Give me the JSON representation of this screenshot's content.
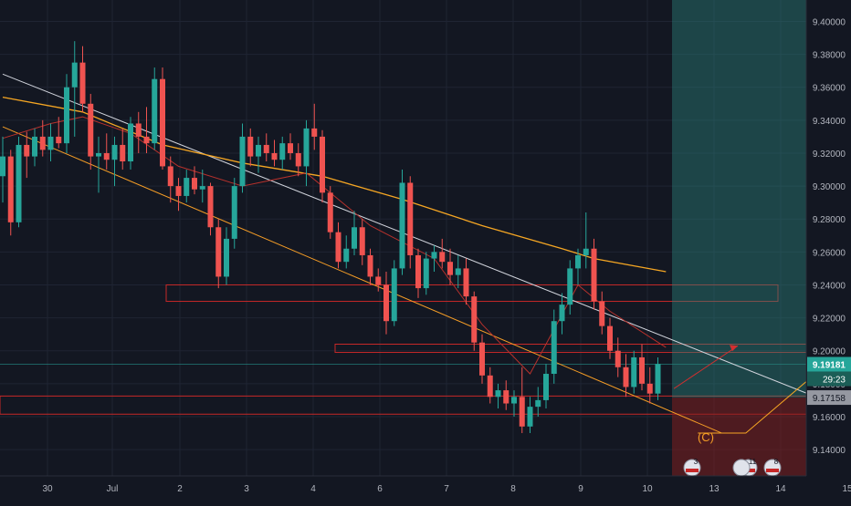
{
  "colors": {
    "background": "#131722",
    "up": "#26a69a",
    "down": "#ef5350",
    "grid": "#1f2433",
    "axis_text": "#b2b5be",
    "ma_long": "#f5a623",
    "ma_short": "#b7312c",
    "channel_white": "#d1d4dc",
    "channel_orange": "#f59d26",
    "zone_red": "#c62828",
    "target_teal": "#2a7f77",
    "stop_red": "#7f1f1f",
    "projection": "#f5a623",
    "arrow_red": "#d32f2f",
    "label_C": "#f59d26",
    "price_badge_teal": "#26a69a",
    "price_badge_gray": "#9598a1"
  },
  "chart_data": {
    "type": "candlestick",
    "instrument_unit": "price",
    "y_axis": {
      "ylim": [
        9.124,
        9.413
      ],
      "ticks": [
        "9.14000",
        "9.16000",
        "9.18000",
        "9.20000",
        "9.22000",
        "9.24000",
        "9.26000",
        "9.28000",
        "9.30000",
        "9.32000",
        "9.34000",
        "9.36000",
        "9.38000",
        "9.40000"
      ],
      "tick_values": [
        9.14,
        9.16,
        9.18,
        9.2,
        9.22,
        9.24,
        9.26,
        9.28,
        9.3,
        9.32,
        9.34,
        9.36,
        9.38,
        9.4
      ]
    },
    "x_axis": {
      "ticks": [
        "30",
        "Jul",
        "2",
        "3",
        "4",
        "6",
        "7",
        "8",
        "9",
        "10",
        "13",
        "14",
        "15"
      ],
      "tick_index": [
        0,
        1,
        2,
        3,
        4,
        5,
        6,
        7,
        8,
        9,
        10,
        11,
        12
      ]
    },
    "price_labels": {
      "current_price": "9.19181",
      "countdown": "29:23",
      "previous_close": "9.17158",
      "current_value": 9.19181,
      "previous_value": 9.17158
    },
    "annotations": {
      "wave_label": "(C)",
      "event_badges": [
        "3",
        "11",
        "8"
      ]
    },
    "zones": [
      {
        "name": "resistance-zone-upper",
        "y_top": 9.24,
        "y_bottom": 9.23
      },
      {
        "name": "resistance-zone-middle",
        "y_top": 9.204,
        "y_bottom": 9.199
      },
      {
        "name": "support-zone-lower",
        "y_top": 9.1725,
        "y_bottom": 9.1615
      }
    ],
    "candles": [
      [
        9.306,
        9.33,
        9.29,
        9.318
      ],
      [
        9.318,
        9.322,
        9.27,
        9.278
      ],
      [
        9.278,
        9.33,
        9.275,
        9.325
      ],
      [
        9.325,
        9.333,
        9.305,
        9.318
      ],
      [
        9.318,
        9.335,
        9.312,
        9.33
      ],
      [
        9.33,
        9.34,
        9.318,
        9.322
      ],
      [
        9.322,
        9.338,
        9.315,
        9.33
      ],
      [
        9.33,
        9.342,
        9.323,
        9.326
      ],
      [
        9.326,
        9.368,
        9.32,
        9.36
      ],
      [
        9.36,
        9.388,
        9.33,
        9.375
      ],
      [
        9.375,
        9.385,
        9.345,
        9.35
      ],
      [
        9.35,
        9.356,
        9.31,
        9.318
      ],
      [
        9.318,
        9.33,
        9.296,
        9.32
      ],
      [
        9.32,
        9.332,
        9.31,
        9.316
      ],
      [
        9.316,
        9.33,
        9.3,
        9.325
      ],
      [
        9.325,
        9.335,
        9.31,
        9.315
      ],
      [
        9.315,
        9.342,
        9.31,
        9.338
      ],
      [
        9.338,
        9.345,
        9.32,
        9.33
      ],
      [
        9.33,
        9.348,
        9.32,
        9.326
      ],
      [
        9.326,
        9.372,
        9.322,
        9.365
      ],
      [
        9.365,
        9.372,
        9.31,
        9.312
      ],
      [
        9.312,
        9.318,
        9.29,
        9.3
      ],
      [
        9.3,
        9.305,
        9.285,
        9.294
      ],
      [
        9.294,
        9.31,
        9.29,
        9.305
      ],
      [
        9.305,
        9.312,
        9.295,
        9.298
      ],
      [
        9.298,
        9.31,
        9.29,
        9.3
      ],
      [
        9.3,
        9.302,
        9.27,
        9.275
      ],
      [
        9.275,
        9.28,
        9.238,
        9.245
      ],
      [
        9.245,
        9.275,
        9.24,
        9.268
      ],
      [
        9.268,
        9.305,
        9.262,
        9.3
      ],
      [
        9.3,
        9.338,
        9.296,
        9.33
      ],
      [
        9.33,
        9.335,
        9.312,
        9.318
      ],
      [
        9.318,
        9.33,
        9.308,
        9.325
      ],
      [
        9.325,
        9.332,
        9.315,
        9.32
      ],
      [
        9.32,
        9.328,
        9.312,
        9.316
      ],
      [
        9.316,
        9.33,
        9.31,
        9.326
      ],
      [
        9.326,
        9.332,
        9.316,
        9.32
      ],
      [
        9.32,
        9.326,
        9.306,
        9.312
      ],
      [
        9.312,
        9.34,
        9.3,
        9.335
      ],
      [
        9.335,
        9.35,
        9.322,
        9.33
      ],
      [
        9.33,
        9.334,
        9.29,
        9.296
      ],
      [
        9.296,
        9.3,
        9.268,
        9.272
      ],
      [
        9.272,
        9.278,
        9.25,
        9.254
      ],
      [
        9.254,
        9.27,
        9.25,
        9.262
      ],
      [
        9.262,
        9.285,
        9.258,
        9.275
      ],
      [
        9.275,
        9.28,
        9.252,
        9.258
      ],
      [
        9.258,
        9.262,
        9.24,
        9.245
      ],
      [
        9.245,
        9.25,
        9.236,
        9.24
      ],
      [
        9.24,
        9.248,
        9.21,
        9.218
      ],
      [
        9.218,
        9.255,
        9.215,
        9.25
      ],
      [
        9.25,
        9.31,
        9.246,
        9.302
      ],
      [
        9.302,
        9.306,
        9.25,
        9.258
      ],
      [
        9.258,
        9.262,
        9.232,
        9.238
      ],
      [
        9.238,
        9.26,
        9.234,
        9.256
      ],
      [
        9.256,
        9.264,
        9.248,
        9.26
      ],
      [
        9.26,
        9.268,
        9.25,
        9.254
      ],
      [
        9.254,
        9.262,
        9.24,
        9.246
      ],
      [
        9.246,
        9.258,
        9.238,
        9.25
      ],
      [
        9.25,
        9.256,
        9.228,
        9.233
      ],
      [
        9.233,
        9.236,
        9.2,
        9.205
      ],
      [
        9.205,
        9.21,
        9.18,
        9.185
      ],
      [
        9.185,
        9.19,
        9.168,
        9.172
      ],
      [
        9.172,
        9.18,
        9.165,
        9.176
      ],
      [
        9.176,
        9.182,
        9.164,
        9.168
      ],
      [
        9.168,
        9.176,
        9.16,
        9.172
      ],
      [
        9.172,
        9.19,
        9.15,
        9.154
      ],
      [
        9.154,
        9.172,
        9.15,
        9.166
      ],
      [
        9.166,
        9.178,
        9.16,
        9.17
      ],
      [
        9.17,
        9.192,
        9.165,
        9.186
      ],
      [
        9.186,
        9.225,
        9.18,
        9.218
      ],
      [
        9.218,
        9.235,
        9.21,
        9.228
      ],
      [
        9.228,
        9.255,
        9.222,
        9.25
      ],
      [
        9.25,
        9.262,
        9.24,
        9.258
      ],
      [
        9.258,
        9.284,
        9.25,
        9.262
      ],
      [
        9.262,
        9.268,
        9.225,
        9.23
      ],
      [
        9.23,
        9.236,
        9.21,
        9.215
      ],
      [
        9.215,
        9.22,
        9.195,
        9.2
      ],
      [
        9.2,
        9.208,
        9.184,
        9.19
      ],
      [
        9.19,
        9.198,
        9.172,
        9.178
      ],
      [
        9.178,
        9.2,
        9.174,
        9.196
      ],
      [
        9.196,
        9.204,
        9.176,
        9.18
      ],
      [
        9.18,
        9.19,
        9.168,
        9.174
      ],
      [
        9.174,
        9.196,
        9.17,
        9.192
      ]
    ],
    "moving_average_long": [
      [
        0,
        9.354
      ],
      [
        10,
        9.345
      ],
      [
        20,
        9.325
      ],
      [
        30,
        9.314
      ],
      [
        40,
        9.306
      ],
      [
        50,
        9.292
      ],
      [
        60,
        9.276
      ],
      [
        70,
        9.262
      ],
      [
        74,
        9.256
      ],
      [
        83,
        9.248
      ]
    ],
    "moving_average_short": [
      [
        0,
        9.329
      ],
      [
        6,
        9.338
      ],
      [
        10,
        9.342
      ],
      [
        16,
        9.332
      ],
      [
        22,
        9.312
      ],
      [
        30,
        9.3
      ],
      [
        38,
        9.308
      ],
      [
        46,
        9.276
      ],
      [
        54,
        9.256
      ],
      [
        60,
        9.216
      ],
      [
        66,
        9.186
      ],
      [
        72,
        9.24
      ],
      [
        76,
        9.224
      ],
      [
        83,
        9.202
      ]
    ],
    "trendlines": [
      {
        "name": "channel-line-upper",
        "from": [
          0,
          9.368
        ],
        "to": [
          108,
          9.16
        ]
      },
      {
        "name": "channel-line-lower",
        "from": [
          0,
          9.336
        ],
        "to": [
          90,
          9.15
        ]
      }
    ],
    "projection": {
      "points": [
        [
          87,
          9.15
        ],
        [
          93,
          9.15
        ],
        [
          108,
          9.212
        ]
      ]
    }
  }
}
